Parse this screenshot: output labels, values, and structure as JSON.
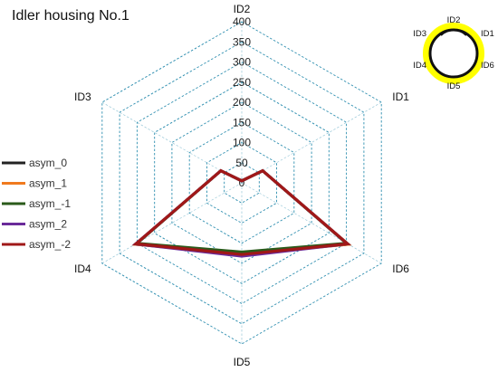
{
  "chart_data": {
    "type": "radar",
    "title": "Idler housing No.1",
    "axes": [
      "ID2",
      "ID1",
      "ID6",
      "ID5",
      "ID4",
      "ID3"
    ],
    "rlim": [
      0,
      400
    ],
    "ticks": [
      50,
      100,
      150,
      200,
      250,
      300,
      350,
      400
    ],
    "tick_labels": [
      "50",
      "100",
      "150",
      "200",
      "250",
      "300",
      "350",
      "400"
    ],
    "center_tick_label": "0",
    "grid": true,
    "grid_style": "dashed",
    "grid_color": "#2f8fb0",
    "legend_position": "left",
    "series": [
      {
        "name": "asym_0",
        "color": "#222222",
        "values": [
          5,
          60,
          305,
          175,
          305,
          60
        ]
      },
      {
        "name": "asym_1",
        "color": "#f07a1e",
        "values": [
          5,
          60,
          305,
          178,
          305,
          60
        ]
      },
      {
        "name": "asym_-1",
        "color": "#2a5a1a",
        "values": [
          5,
          60,
          300,
          172,
          300,
          60
        ]
      },
      {
        "name": "asym_2",
        "color": "#6a2a9a",
        "values": [
          5,
          60,
          303,
          182,
          304,
          60
        ]
      },
      {
        "name": "asym_-2",
        "color": "#a01818",
        "values": [
          5,
          60,
          303,
          178,
          303,
          60
        ]
      }
    ]
  },
  "inset": {
    "labels": [
      "ID2",
      "ID1",
      "ID6",
      "ID5",
      "ID4",
      "ID3"
    ],
    "highlight_color": "#ffff00"
  }
}
